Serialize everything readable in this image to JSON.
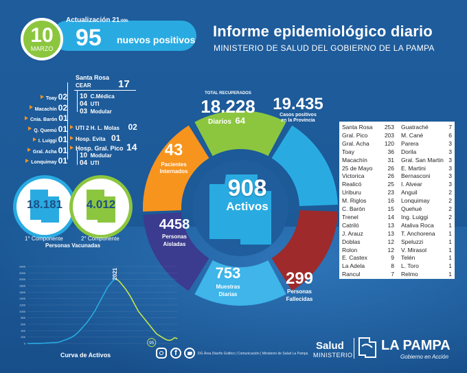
{
  "date": {
    "day": "10",
    "month": "MARZO"
  },
  "update": {
    "label": "Actualización",
    "time": "21",
    "time_suffix": ":00h",
    "new_count": "95",
    "new_label": "nuevos positivos"
  },
  "header": {
    "title": "Informe epidemiológico diario",
    "subtitle": "MINISTERIO DE SALUD DEL GOBIERNO DE LA PAMPA"
  },
  "hospitals_left": [
    {
      "name": "Toay",
      "count": "02"
    },
    {
      "name": "Macachín",
      "count": "02"
    },
    {
      "name": "Cnia. Barón",
      "count": "01"
    },
    {
      "name": "Q. Quemú",
      "count": "01"
    },
    {
      "name": "I. Luiggi",
      "count": "01"
    },
    {
      "name": "Gral. Acha",
      "count": "01"
    },
    {
      "name": "Lonquimay",
      "count": "01"
    }
  ],
  "santa_rosa": {
    "title": "Santa Rosa",
    "cear": {
      "label": "CEAR",
      "count": "17",
      "sub": [
        {
          "count": "10",
          "label": "C.Médica"
        },
        {
          "count": "04",
          "label": "UTI"
        },
        {
          "count": "03",
          "label": "Modular"
        }
      ]
    },
    "molas": {
      "label": "UTI 2 H. L. Molas",
      "count": "02"
    },
    "evita": {
      "label": "Hosp. Evita",
      "count": "01"
    },
    "pico": {
      "label": "Hosp. Gral. Pico",
      "count": "14",
      "sub": [
        {
          "count": "10",
          "label": "Modular"
        },
        {
          "count": "04",
          "label": "UTI"
        }
      ]
    }
  },
  "vaccination": {
    "first": {
      "value": "18.181",
      "label": "1° Componente"
    },
    "second": {
      "value": "4.012",
      "label": "2° Componente"
    },
    "caption": "Personas Vacunadas",
    "colors": {
      "first": "#29abe2",
      "second": "#8cc63f"
    }
  },
  "wheel": {
    "center": {
      "value": "908",
      "label": "Activos"
    },
    "recovered": {
      "header": "TOTAL RECUPERADOS",
      "value": "18.228",
      "daily_label": "Diarios",
      "daily": "64",
      "color": "#8cc63f"
    },
    "positives": {
      "value": "19.435",
      "label1": "Casos positivos",
      "label2": "en la Provincia",
      "color": "#29abe2"
    },
    "hospitalized": {
      "value": "43",
      "label1": "Pacientes",
      "label2": "Internados",
      "color": "#f7941d"
    },
    "isolated": {
      "value": "4458",
      "label1": "Personas",
      "label2": "Aisladas",
      "color": "#3b3b8f"
    },
    "samples": {
      "value": "753",
      "label1": "Muestras",
      "label2": "Diarias",
      "color": "#3fb5ea"
    },
    "deceased": {
      "value": "299",
      "label1": "Personas",
      "label2": "Fallecidas",
      "color": "#9e2a2b"
    }
  },
  "departments": {
    "left": [
      [
        "Santa Rosa",
        "253"
      ],
      [
        "Gral. Pico",
        "203"
      ],
      [
        "Gral. Acha",
        "120"
      ],
      [
        "Toay",
        "36"
      ],
      [
        "Macachín",
        "31"
      ],
      [
        "25 de Mayo",
        "26"
      ],
      [
        "Victorica",
        "26"
      ],
      [
        "Realicó",
        "25"
      ],
      [
        "Uriburu",
        "23"
      ],
      [
        "M. Riglos",
        "16"
      ],
      [
        "C. Barón",
        "15"
      ],
      [
        "Trenel",
        "14"
      ],
      [
        "Catriló",
        "13"
      ],
      [
        "J. Arauz",
        "13"
      ],
      [
        "Doblas",
        "12"
      ],
      [
        "Rolon",
        "12"
      ],
      [
        "E. Castex",
        "9"
      ],
      [
        "La Adela",
        "8"
      ],
      [
        "Rancul",
        "7"
      ]
    ],
    "right": [
      [
        "Guatraché",
        "7"
      ],
      [
        "M. Cané",
        "6"
      ],
      [
        "Parera",
        "3"
      ],
      [
        "Dorila",
        "3"
      ],
      [
        "Gral. San Martin",
        "3"
      ],
      [
        "E. Martini",
        "3"
      ],
      [
        "Bernasconi",
        "3"
      ],
      [
        "I. Alvear",
        "3"
      ],
      [
        "Anguil",
        "2"
      ],
      [
        "Lonquimay",
        "2"
      ],
      [
        "Quehué",
        "2"
      ],
      [
        "Ing. Luiggi",
        "2"
      ],
      [
        "Ataliva Roca",
        "1"
      ],
      [
        "T. Anchorena",
        "1"
      ],
      [
        "Speluzzi",
        "1"
      ],
      [
        "V. Mirasol",
        "1"
      ],
      [
        "Telén",
        "1"
      ],
      [
        "L. Toro",
        "1"
      ],
      [
        "Relmo",
        "1"
      ]
    ]
  },
  "chart_data": {
    "type": "line",
    "title": "Curva de Activos",
    "series": [
      {
        "values": [
          0,
          1,
          1,
          2,
          3,
          5,
          8,
          12,
          18,
          22,
          30,
          25,
          40,
          60,
          95,
          120,
          150,
          190,
          240,
          300,
          380,
          470,
          560,
          650,
          760,
          880,
          1000,
          1150,
          1300,
          1450,
          1600,
          1750,
          1850,
          1950,
          2021,
          1980,
          1900,
          1800,
          1700,
          1580,
          1450,
          1300,
          1150,
          1000,
          900,
          800,
          700,
          600,
          500,
          400,
          300,
          250,
          200,
          150,
          110,
          95,
          120,
          180,
          150
        ]
      }
    ],
    "annotations": [
      {
        "label": "2021",
        "type": "peak"
      },
      {
        "label": "95",
        "type": "current"
      }
    ],
    "ylim": [
      0,
      2400
    ],
    "yticks": [
      "2400",
      "2200",
      "2000",
      "1800",
      "1600",
      "1400",
      "1200",
      "1000",
      "800",
      "600",
      "400",
      "200",
      "0"
    ],
    "colors": {
      "rise": "#29abe2",
      "fall": "#c4e84a"
    }
  },
  "footer": {
    "credit": "DG Área Diseño Gráfico  |  Comunicación  |  Ministerio de Salud La Pampa",
    "salud": "Salud",
    "ministerio": "MINISTERIO",
    "province": "LA PAMPA",
    "motto": "Gobierno en Acción"
  },
  "icons": [
    "instagram-icon",
    "facebook-icon",
    "twitter-icon"
  ]
}
